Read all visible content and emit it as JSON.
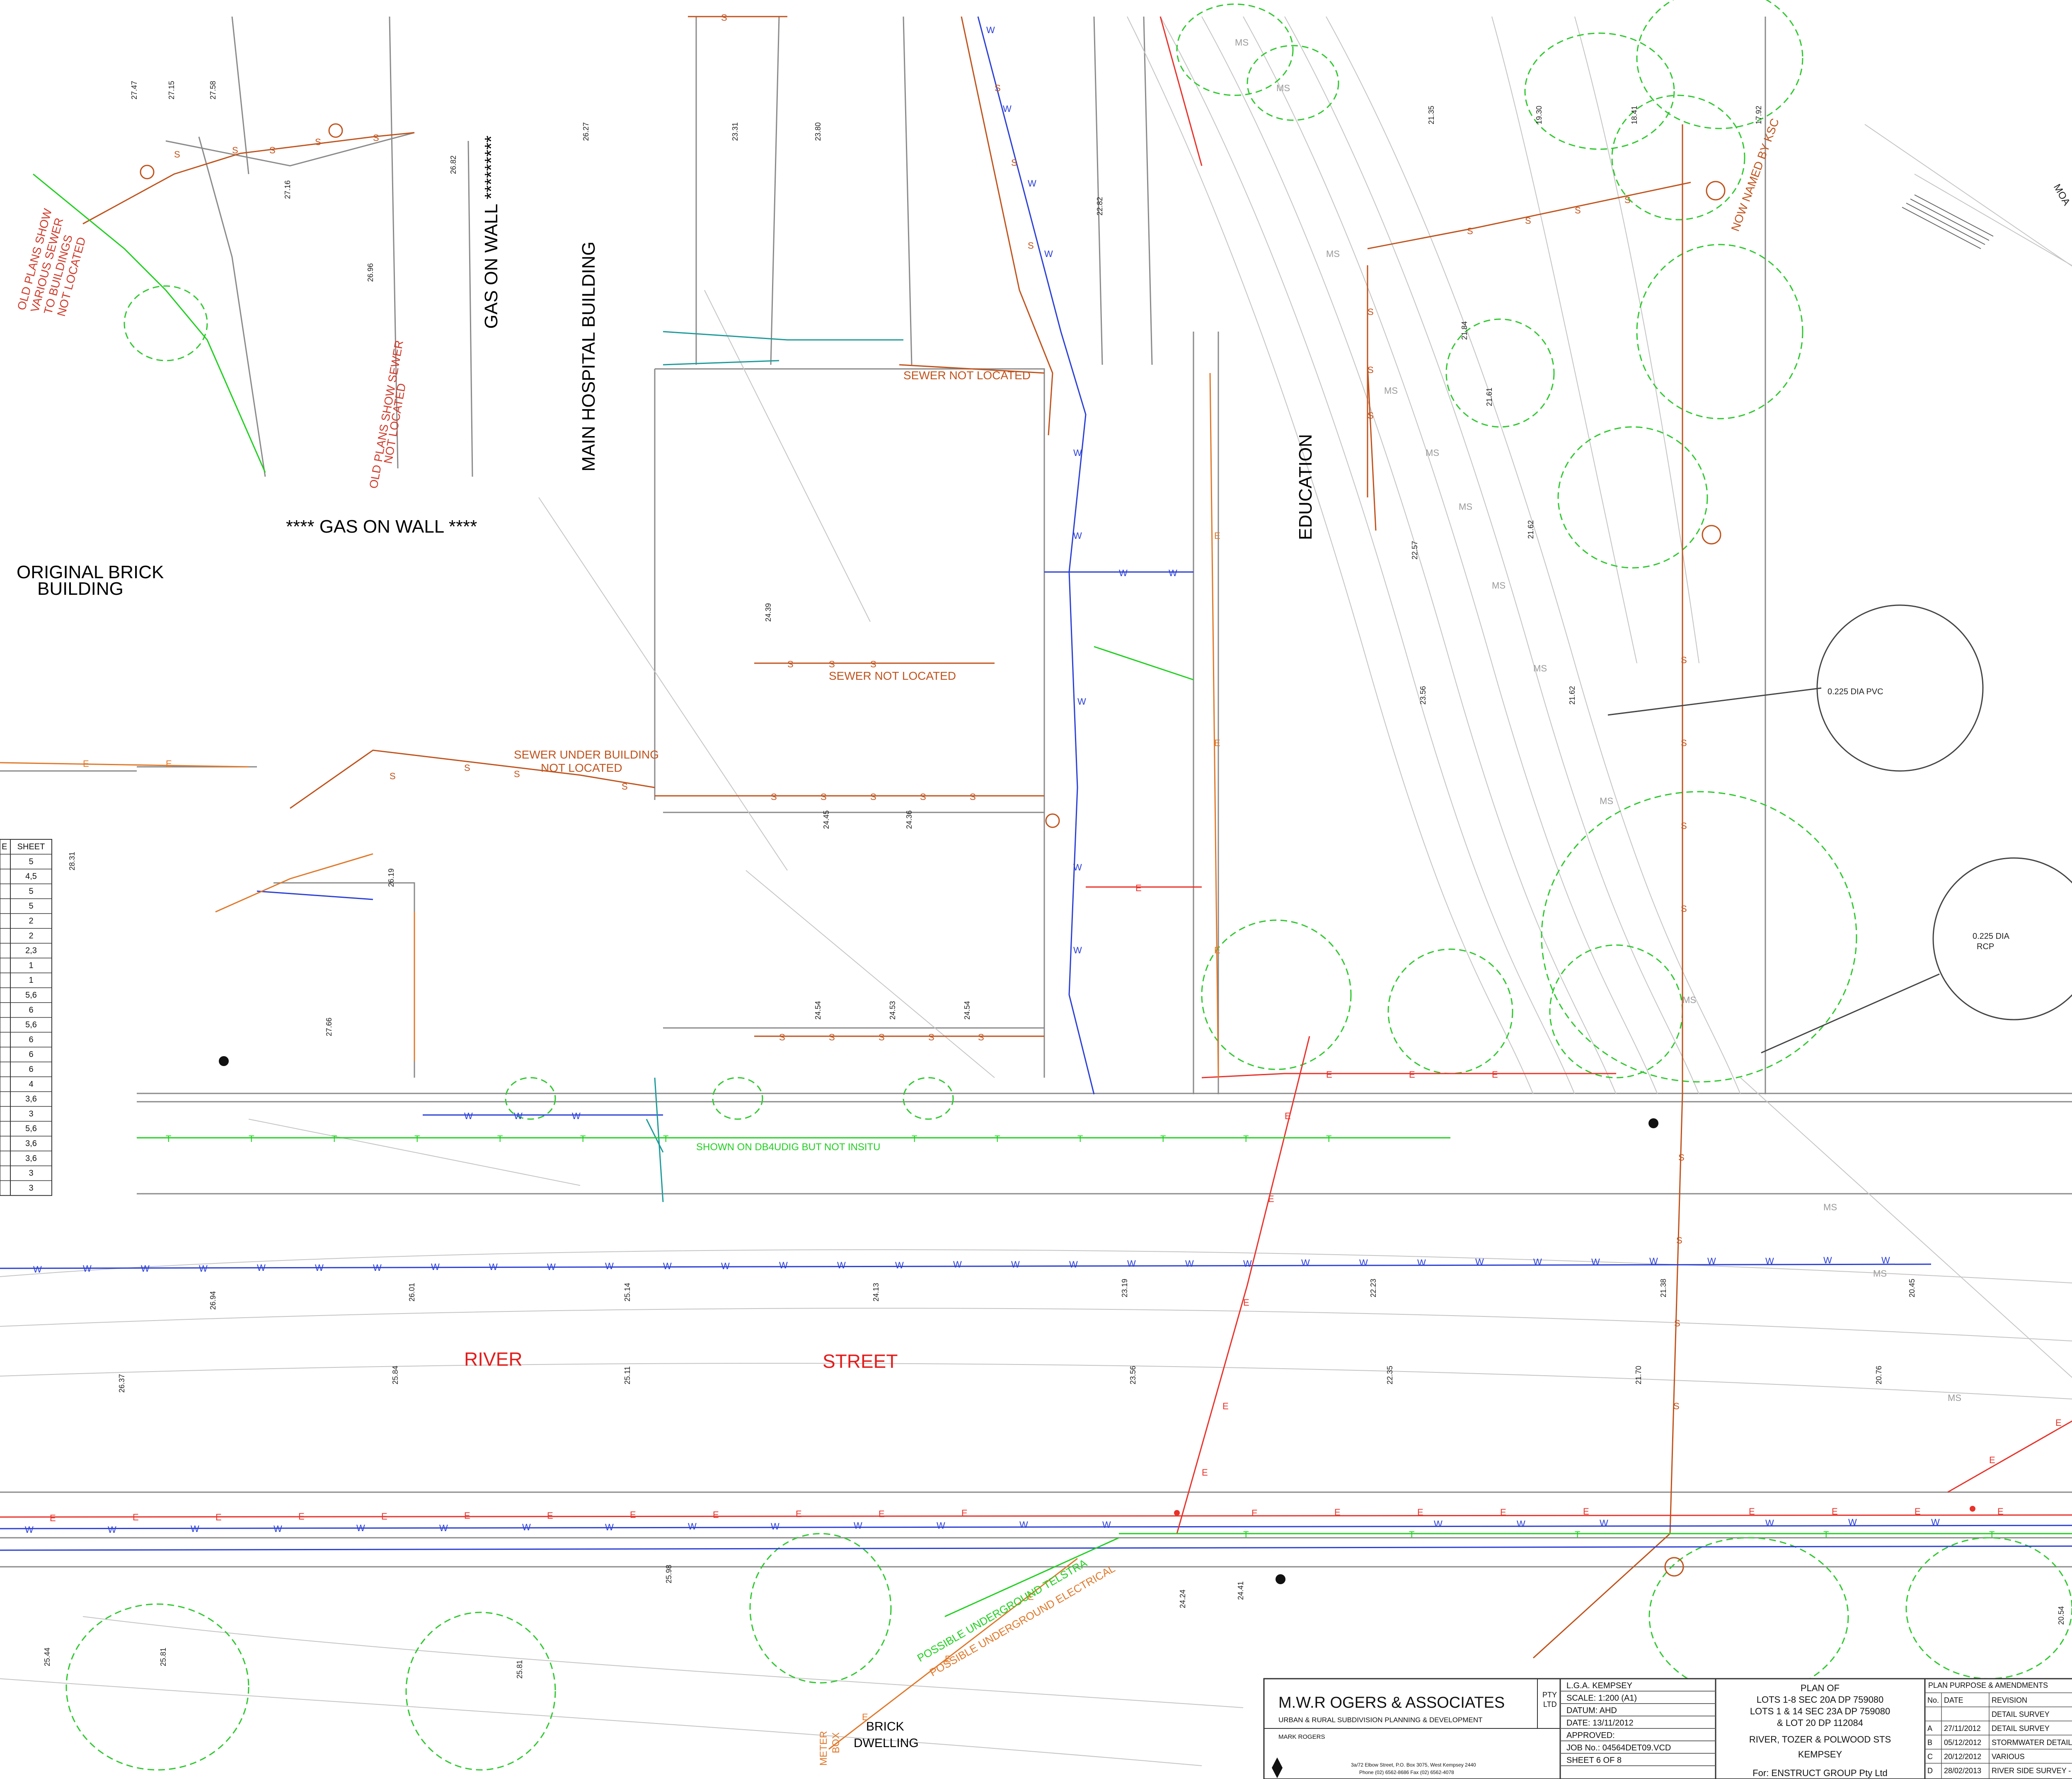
{
  "labels": {
    "gas_on_wall_right": "GAS ON WALL *********",
    "gas_on_wall_bottom": "**** GAS ON WALL ****",
    "main_hospital": "MAIN HOSPITAL BUILDING",
    "original_brick_1": "ORIGINAL BRICK",
    "original_brick_2": "BUILDING",
    "education": "EDUCATION",
    "old_plans_1": "OLD PLANS SHOW",
    "old_plans_2": "VARIOUS SEWER",
    "old_plans_3": "TO BUILDINGS",
    "old_plans_4": "NOT LOCATED",
    "old_plans_sewer_1": "OLD PLANS SHOW SEWER",
    "old_plans_sewer_2": "NOT LOCATED",
    "sewer_not_located_1": "SEWER NOT LOCATED",
    "sewer_not_located_2": "SEWER NOT LOCATED",
    "sewer_under_1": "SEWER UNDER BUILDING",
    "sewer_under_2": "NOT LOCATED",
    "shown_dbyd": "SHOWN ON DB4UDIG BUT NOT INSITU",
    "river": "RIVER",
    "street": "STREET",
    "underground_telstra": "POSSIBLE UNDERGROUND TELSTRA",
    "underground_electrical": "POSSIBLE UNDERGROUND ELECTRICAL",
    "now_named": "NOW NAMED BY KSC",
    "brick_1": "BRICK",
    "brick_2": "DWELLING",
    "meter_1": "METER",
    "meter_2": "BOX",
    "moa": "MOA",
    "pvc_label": "0.225 DIA PVC",
    "rcp_label_1": "0.225 DIA",
    "rcp_label_2": "RCP"
  },
  "sheet_table": {
    "header": [
      "E",
      "SHEET"
    ],
    "rows": [
      "5",
      "4,5",
      "5",
      "5",
      "2",
      "2",
      "2,3",
      "1",
      "1",
      "5,6",
      "6",
      "5,6",
      "6",
      "6",
      "6",
      "4",
      "3,6",
      "3",
      "5,6",
      "3,6",
      "3,6",
      "3",
      "3"
    ]
  },
  "title_block": {
    "firm_name": "M.W.R OGERS & ASSOCIATES",
    "pty": "PTY",
    "ltd": "LTD",
    "subtitle": "URBAN & RURAL SUBDIVISION PLANNING & DEVELOPMENT",
    "person": "MARK ROGERS",
    "address": "3a/72 Elbow Street, P.O. Box 3075, West Kempsey 2440",
    "phone": "Phone (02) 6562-8686  Fax (02) 6562-4078",
    "lga": "L.G.A. KEMPSEY",
    "scale": "SCALE: 1:200 (A1)",
    "datum": "DATUM: AHD",
    "date": "DATE: 13/11/2012",
    "approved": "APPROVED:",
    "job": "JOB No.: 04564DET09.VCD",
    "sheet": "SHEET 6 OF 8",
    "plan_of": "PLAN OF",
    "lots_1": "LOTS 1-8 SEC 20A DP 759080",
    "lots_2": "LOTS 1 & 14 SEC 23A DP 759080",
    "lots_3": "& LOT 20 DP 112084",
    "streets": "RIVER, TOZER & POLWOOD STS",
    "town": "KEMPSEY",
    "client": "For: ENSTRUCT GROUP Pty Ltd"
  },
  "amendments": {
    "heading": "PLAN PURPOSE & AMENDMENTS",
    "columns": [
      "No.",
      "DATE",
      "REVISION"
    ],
    "rows": [
      {
        "no": "",
        "date": "",
        "rev": "DETAIL SURVEY"
      },
      {
        "no": "A",
        "date": "27/11/2012",
        "rev": "DETAIL SURVEY"
      },
      {
        "no": "B",
        "date": "05/12/2012",
        "rev": "STORMWATER DETAIL"
      },
      {
        "no": "C",
        "date": "20/12/2012",
        "rev": "VARIOUS"
      },
      {
        "no": "D",
        "date": "28/02/2013",
        "rev": "RIVER SIDE SURVEY - FUEL STOR"
      }
    ]
  },
  "colors": {
    "sewer": "#c0521b",
    "water": "#2a3fd6",
    "electric": "#e8322a",
    "telstra": "#1ecf1e",
    "tree": "#2ec82e",
    "stormwater": "#9a9a9a",
    "annotation": "#e21d1d",
    "linework": "#8a8a8a"
  }
}
